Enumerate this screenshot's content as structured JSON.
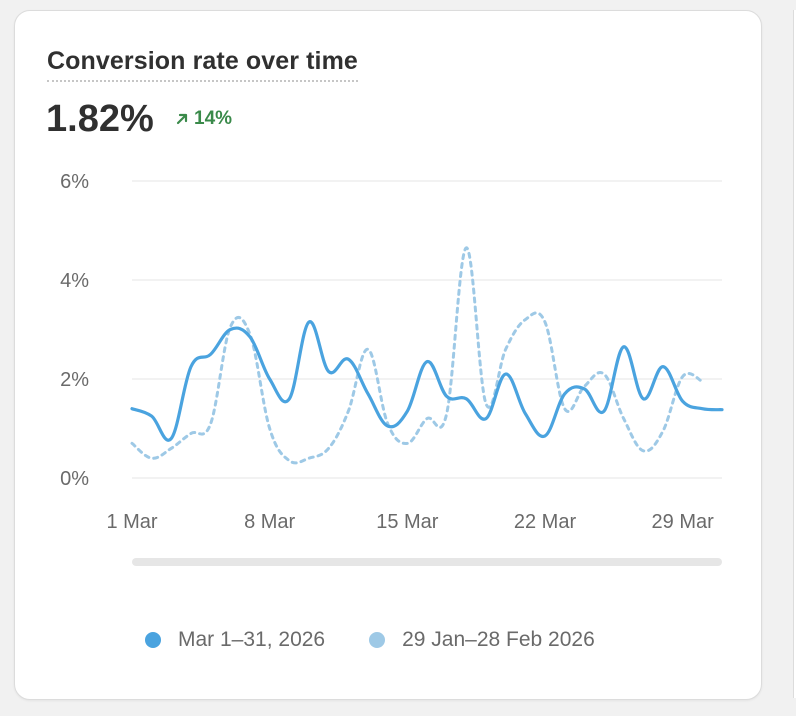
{
  "card": {
    "title": "Conversion rate over time",
    "metric_value": "1.82%",
    "delta_value": "14%",
    "delta_color": "#3a8a4a"
  },
  "legend": {
    "current": "Mar 1–31, 2026",
    "previous": "29 Jan–28 Feb 2026"
  },
  "colors": {
    "current": "#4aa3df",
    "previous": "#9ec9e6",
    "grid": "#e6e6e6"
  },
  "chart_data": {
    "type": "line",
    "title": "Conversion rate over time",
    "xlabel": "",
    "ylabel": "",
    "x_tick_labels": [
      "1 Mar",
      "8 Mar",
      "15 Mar",
      "22 Mar",
      "29 Mar"
    ],
    "y_tick_labels": [
      "0%",
      "2%",
      "4%",
      "6%"
    ],
    "ylim": [
      0,
      6
    ],
    "grid": true,
    "legend_position": "bottom",
    "series": [
      {
        "name": "Mar 1–31, 2026",
        "style": "solid",
        "x": [
          1,
          2,
          3,
          4,
          5,
          6,
          7,
          8,
          9,
          10,
          11,
          12,
          13,
          14,
          15,
          16,
          17,
          18,
          19,
          20,
          21,
          22,
          23,
          24,
          25,
          26,
          27,
          28,
          29,
          30,
          31
        ],
        "values": [
          1.4,
          1.25,
          0.8,
          2.25,
          2.5,
          3.0,
          2.85,
          2.0,
          1.6,
          3.15,
          2.15,
          2.4,
          1.7,
          1.05,
          1.35,
          2.35,
          1.65,
          1.6,
          1.2,
          2.1,
          1.3,
          0.85,
          1.7,
          1.8,
          1.35,
          2.65,
          1.6,
          2.25,
          1.55,
          1.4,
          1.38
        ]
      },
      {
        "name": "29 Jan–28 Feb 2026",
        "style": "dashed",
        "x": [
          1,
          2,
          3,
          4,
          5,
          6,
          7,
          8,
          9,
          10,
          11,
          12,
          13,
          14,
          15,
          16,
          17,
          18,
          19,
          20,
          21,
          22,
          23,
          24,
          25,
          26,
          27,
          28,
          29,
          30
        ],
        "values": [
          0.7,
          0.4,
          0.6,
          0.9,
          1.1,
          3.05,
          2.9,
          1.0,
          0.35,
          0.4,
          0.6,
          1.35,
          2.6,
          1.1,
          0.7,
          1.2,
          1.3,
          4.65,
          1.5,
          2.6,
          3.2,
          3.15,
          1.4,
          1.85,
          2.1,
          1.2,
          0.55,
          0.95,
          2.05,
          1.95
        ]
      }
    ]
  }
}
